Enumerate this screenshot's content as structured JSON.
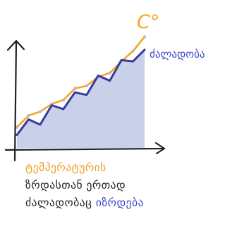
{
  "colors": {
    "temperature": "#f5a623",
    "strength": "#3a3aa0",
    "area": "#c8d0ea",
    "axis": "#222222",
    "text_dark": "#222222",
    "text_orange": "#f29b1c",
    "text_blue": "#3a49c9"
  },
  "chart_data": {
    "type": "line",
    "grid": false,
    "series": [
      {
        "name": "ძალადობა",
        "color": "#3a3aa0",
        "fill": "#c8d0ea",
        "values": [
          1,
          2.2,
          1.8,
          3.3,
          3,
          4.3,
          4.1,
          5.6,
          5.2,
          6.8,
          6.7,
          7.6
        ]
      },
      {
        "name": "C°",
        "color": "#f5a623",
        "values": [
          1.6,
          2.5,
          2.8,
          3.4,
          3.7,
          4.6,
          4.8,
          5.5,
          5.8,
          6.7,
          7.5,
          8.6
        ]
      }
    ],
    "x_label": "ტემპერატურის",
    "y_unit": "C°"
  },
  "caption": {
    "line1": "ტემპერატურის",
    "line2": "ზრდასთან ერთად",
    "line3_a": "ძალადობაც",
    "line3_b": "იზრდება"
  }
}
